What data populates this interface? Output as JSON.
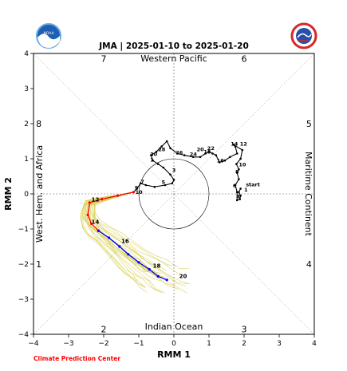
{
  "chart_data": {
    "type": "line",
    "title": "JMA | 2025-01-10 to 2025-01-20",
    "xlabel": "RMM 1",
    "ylabel": "RMM 2",
    "xlim": [
      -4,
      4
    ],
    "ylim": [
      -4,
      4
    ],
    "x_ticks": [
      "−4",
      "−3",
      "−2",
      "−1",
      "0",
      "1",
      "2",
      "3",
      "4"
    ],
    "y_ticks": [
      "−4",
      "−3",
      "−2",
      "−1",
      "0",
      "1",
      "2",
      "3",
      "4"
    ],
    "region_labels": {
      "top": "Western Pacific",
      "bottom": "Indian Ocean",
      "left": "West. Hem. and Africa",
      "right": "Maritime Continent"
    },
    "phase_numbers": [
      "1",
      "2",
      "3",
      "4",
      "5",
      "6",
      "7",
      "8"
    ],
    "observed_track": {
      "color": "#000000",
      "points": [
        [
          1.9,
          0.15
        ],
        [
          1.85,
          0.05
        ],
        [
          1.9,
          -0.05
        ],
        [
          1.88,
          -0.15
        ],
        [
          1.8,
          -0.18
        ],
        [
          1.8,
          0.05
        ],
        [
          1.75,
          0.25
        ],
        [
          1.85,
          0.42
        ],
        [
          1.8,
          0.6
        ],
        [
          1.85,
          0.7
        ],
        [
          1.78,
          0.85
        ],
        [
          1.9,
          1.0
        ],
        [
          1.95,
          1.25
        ],
        [
          1.7,
          1.4
        ],
        [
          1.75,
          1.35
        ],
        [
          1.8,
          1.15
        ],
        [
          1.6,
          1.05
        ],
        [
          1.45,
          0.95
        ],
        [
          1.3,
          0.9
        ],
        [
          1.2,
          1.1
        ],
        [
          1.1,
          1.15
        ],
        [
          1.0,
          1.2
        ],
        [
          0.9,
          1.15
        ],
        [
          0.75,
          1.05
        ],
        [
          0.55,
          1.05
        ],
        [
          0.3,
          1.1
        ],
        [
          0.1,
          1.15
        ],
        [
          -0.1,
          1.3
        ],
        [
          -0.2,
          1.5
        ],
        [
          -0.35,
          1.35
        ],
        [
          -0.5,
          1.2
        ],
        [
          -0.65,
          1.1
        ],
        [
          -0.6,
          0.95
        ],
        [
          -0.45,
          0.85
        ],
        [
          -0.3,
          0.75
        ],
        [
          -0.1,
          0.55
        ],
        [
          0.0,
          0.4
        ],
        [
          -0.05,
          0.3
        ],
        [
          -0.25,
          0.25
        ],
        [
          -0.55,
          0.2
        ],
        [
          -0.8,
          0.25
        ],
        [
          -0.95,
          0.3
        ],
        [
          -1.05,
          0.15
        ],
        [
          -1.15,
          0.05
        ]
      ]
    },
    "day_labels": [
      {
        "text": "start",
        "x": 2.05,
        "y": 0.22
      },
      {
        "text": "1",
        "x": 2.0,
        "y": 0.07
      },
      {
        "text": "4",
        "x": 1.78,
        "y": -0.12
      },
      {
        "text": "6",
        "x": 1.68,
        "y": 0.18
      },
      {
        "text": "8",
        "x": 1.75,
        "y": 0.58
      },
      {
        "text": "10",
        "x": 1.85,
        "y": 0.78
      },
      {
        "text": "12",
        "x": 1.88,
        "y": 1.38
      },
      {
        "text": "14",
        "x": 1.62,
        "y": 1.38
      },
      {
        "text": "16",
        "x": 1.22,
        "y": 0.9
      },
      {
        "text": "18",
        "x": 0.85,
        "y": 1.15
      },
      {
        "text": "20",
        "x": 0.65,
        "y": 1.22
      },
      {
        "text": "22",
        "x": 0.95,
        "y": 1.25
      },
      {
        "text": "24",
        "x": 0.45,
        "y": 1.08
      },
      {
        "text": "26",
        "x": 0.05,
        "y": 1.12
      },
      {
        "text": "28",
        "x": -0.45,
        "y": 1.22
      },
      {
        "text": "30",
        "x": -0.68,
        "y": 1.08
      },
      {
        "text": "1",
        "x": -0.68,
        "y": 0.92
      },
      {
        "text": "3",
        "x": -0.05,
        "y": 0.62
      },
      {
        "text": "5",
        "x": -0.35,
        "y": 0.28
      },
      {
        "text": "7",
        "x": -0.95,
        "y": 0.3
      },
      {
        "text": "9",
        "x": -1.12,
        "y": 0.12
      },
      {
        "text": "10",
        "x": -1.1,
        "y": 0.0
      }
    ],
    "forecast_red": {
      "color": "#ff0000",
      "points": [
        [
          -1.15,
          0.05
        ],
        [
          -1.6,
          -0.05
        ],
        [
          -2.05,
          -0.15
        ],
        [
          -2.4,
          -0.25
        ],
        [
          -2.45,
          -0.6
        ],
        [
          -2.35,
          -0.85
        ],
        [
          -2.15,
          -1.05
        ]
      ],
      "labels": [
        {
          "text": "12",
          "x": -2.35,
          "y": -0.22
        },
        {
          "text": "14",
          "x": -2.35,
          "y": -0.85
        }
      ]
    },
    "forecast_blue": {
      "color": "#0000ff",
      "points": [
        [
          -2.15,
          -1.05
        ],
        [
          -1.85,
          -1.25
        ],
        [
          -1.55,
          -1.5
        ],
        [
          -1.3,
          -1.72
        ],
        [
          -1.0,
          -1.95
        ],
        [
          -0.7,
          -2.15
        ],
        [
          -0.45,
          -2.35
        ],
        [
          -0.2,
          -2.45
        ]
      ],
      "labels": [
        {
          "text": "16",
          "x": -1.5,
          "y": -1.4
        },
        {
          "text": "18",
          "x": -0.6,
          "y": -2.1
        },
        {
          "text": "20",
          "x": 0.15,
          "y": -2.4
        }
      ]
    },
    "ensemble_color": "#d8cf55",
    "grid": false,
    "circle_radius": 1
  },
  "branding": {
    "left_logo_text": "NOAA",
    "right_logo_text": "NATIONAL WEATHER SERVICE",
    "credit": "Climate Prediction Center"
  }
}
